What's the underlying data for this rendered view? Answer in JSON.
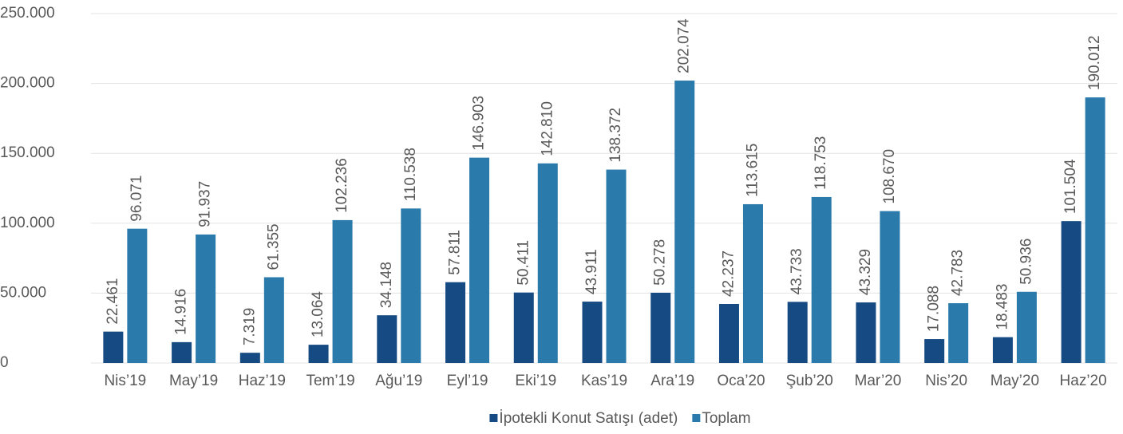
{
  "chart_data": {
    "type": "bar",
    "categories": [
      "Nis’19",
      "May’19",
      "Haz’19",
      "Tem’19",
      "Ağu’19",
      "Eyl’19",
      "Eki’19",
      "Kas’19",
      "Ara’19",
      "Oca’20",
      "Şub’20",
      "Mar’20",
      "Nis’20",
      "May’20",
      "Haz’20"
    ],
    "series": [
      {
        "name": "İpotekli Konut Satışı (adet)",
        "color": "#164a82",
        "values": [
          22461,
          14916,
          7319,
          13064,
          34148,
          57811,
          50411,
          43911,
          50278,
          42237,
          43733,
          43329,
          17088,
          18483,
          101504
        ],
        "value_labels": [
          "22.461",
          "14.916",
          "7.319",
          "13.064",
          "34.148",
          "57.811",
          "50.411",
          "43.911",
          "50.278",
          "42.237",
          "43.733",
          "43.329",
          "17.088",
          "18.483",
          "101.504"
        ]
      },
      {
        "name": "Toplam",
        "color": "#2a7aab",
        "values": [
          96071,
          91937,
          61355,
          102236,
          110538,
          146903,
          142810,
          138372,
          202074,
          113615,
          118753,
          108670,
          42783,
          50936,
          190012
        ],
        "value_labels": [
          "96.071",
          "91.937",
          "61.355",
          "102.236",
          "110.538",
          "146.903",
          "142.810",
          "138.372",
          "202.074",
          "113.615",
          "118.753",
          "108.670",
          "42.783",
          "50.936",
          "190.012"
        ]
      }
    ],
    "ylim": [
      0,
      250000
    ],
    "yticks": [
      0,
      {
        "value": 50000,
        "label": "50.000"
      },
      {
        "value": 100000,
        "label": "100.000"
      },
      {
        "value": 150000,
        "label": "150.000"
      },
      {
        "value": 200000,
        "label": "200.000"
      },
      {
        "value": 250000,
        "label": "250.000"
      }
    ],
    "grid": true,
    "legend": "bottom"
  }
}
